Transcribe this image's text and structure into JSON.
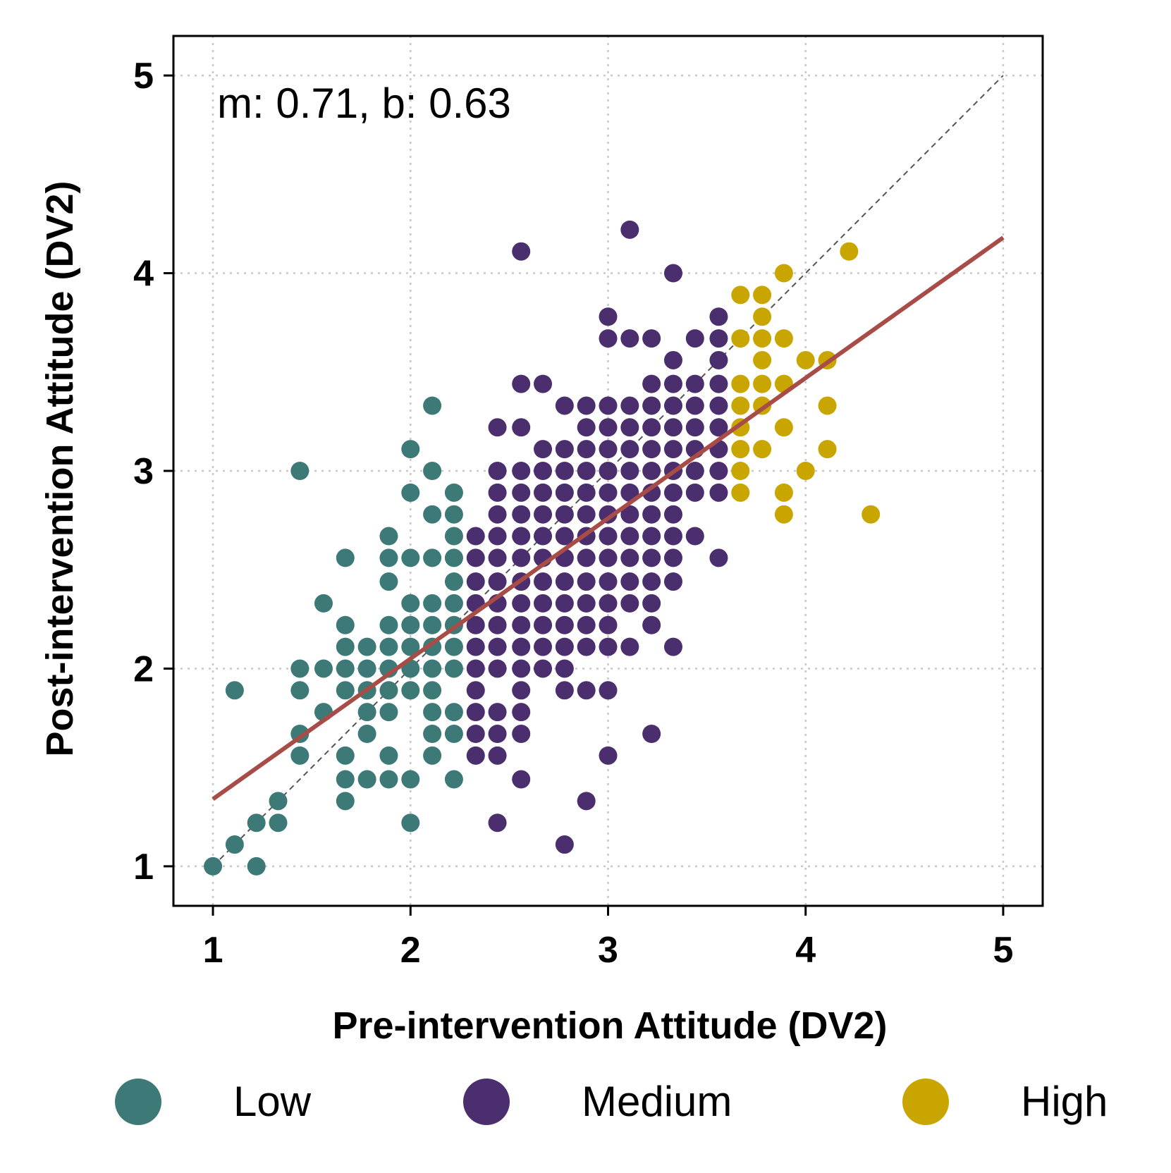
{
  "chart_data": {
    "type": "scatter",
    "xlabel": "Pre-intervention Attitude (DV2)",
    "ylabel": "Post-intervention Attitude (DV2)",
    "xlim": [
      0.8,
      5.2
    ],
    "ylim": [
      0.8,
      5.2
    ],
    "xticks": [
      1,
      2,
      3,
      4,
      5
    ],
    "yticks": [
      1,
      2,
      3,
      4,
      5
    ],
    "grid": true,
    "annotation": "m: 0.71, b: 0.63",
    "identity_line": true,
    "fit_line": {
      "slope": 0.71,
      "intercept": 0.63,
      "x_range": [
        1,
        5
      ],
      "color": "#a84c48"
    },
    "legend_position": "bottom",
    "series": [
      {
        "name": "Low",
        "color": "#3d7a77",
        "points": [
          [
            1.0,
            1.0
          ],
          [
            1.11,
            1.11
          ],
          [
            1.22,
            1.0
          ],
          [
            1.22,
            1.22
          ],
          [
            1.33,
            1.22
          ],
          [
            1.33,
            1.33
          ],
          [
            1.11,
            1.89
          ],
          [
            1.44,
            1.56
          ],
          [
            1.44,
            1.67
          ],
          [
            1.44,
            1.89
          ],
          [
            1.44,
            2.0
          ],
          [
            1.44,
            3.0
          ],
          [
            1.56,
            1.78
          ],
          [
            1.56,
            2.0
          ],
          [
            1.56,
            2.33
          ],
          [
            1.67,
            1.33
          ],
          [
            1.67,
            1.44
          ],
          [
            1.67,
            1.56
          ],
          [
            1.67,
            1.89
          ],
          [
            1.67,
            2.0
          ],
          [
            1.67,
            2.11
          ],
          [
            1.67,
            2.22
          ],
          [
            1.67,
            2.56
          ],
          [
            1.78,
            1.44
          ],
          [
            1.78,
            1.67
          ],
          [
            1.78,
            1.78
          ],
          [
            1.78,
            1.89
          ],
          [
            1.78,
            2.0
          ],
          [
            1.78,
            2.11
          ],
          [
            1.89,
            1.44
          ],
          [
            1.89,
            1.56
          ],
          [
            1.89,
            1.78
          ],
          [
            1.89,
            1.89
          ],
          [
            1.89,
            2.0
          ],
          [
            1.89,
            2.11
          ],
          [
            1.89,
            2.22
          ],
          [
            1.89,
            2.44
          ],
          [
            1.89,
            2.56
          ],
          [
            1.89,
            2.67
          ],
          [
            2.0,
            1.22
          ],
          [
            2.0,
            1.44
          ],
          [
            2.0,
            1.89
          ],
          [
            2.0,
            2.0
          ],
          [
            2.0,
            2.11
          ],
          [
            2.0,
            2.22
          ],
          [
            2.0,
            2.33
          ],
          [
            2.0,
            2.56
          ],
          [
            2.0,
            2.89
          ],
          [
            2.0,
            3.11
          ],
          [
            2.11,
            1.56
          ],
          [
            2.11,
            1.67
          ],
          [
            2.11,
            1.78
          ],
          [
            2.11,
            1.89
          ],
          [
            2.11,
            2.0
          ],
          [
            2.11,
            2.11
          ],
          [
            2.11,
            2.22
          ],
          [
            2.11,
            2.33
          ],
          [
            2.11,
            2.56
          ],
          [
            2.11,
            2.78
          ],
          [
            2.11,
            3.0
          ],
          [
            2.11,
            3.33
          ],
          [
            2.22,
            1.44
          ],
          [
            2.22,
            1.67
          ],
          [
            2.22,
            1.78
          ],
          [
            2.22,
            2.0
          ],
          [
            2.22,
            2.11
          ],
          [
            2.22,
            2.22
          ],
          [
            2.22,
            2.33
          ],
          [
            2.22,
            2.44
          ],
          [
            2.22,
            2.56
          ],
          [
            2.22,
            2.67
          ],
          [
            2.22,
            2.78
          ],
          [
            2.22,
            2.89
          ]
        ]
      },
      {
        "name": "Medium",
        "color": "#4b2e6e",
        "points": [
          [
            2.33,
            1.56
          ],
          [
            2.33,
            1.67
          ],
          [
            2.33,
            1.78
          ],
          [
            2.33,
            1.89
          ],
          [
            2.33,
            2.0
          ],
          [
            2.33,
            2.11
          ],
          [
            2.33,
            2.22
          ],
          [
            2.33,
            2.33
          ],
          [
            2.33,
            2.44
          ],
          [
            2.33,
            2.56
          ],
          [
            2.33,
            2.67
          ],
          [
            2.44,
            1.22
          ],
          [
            2.44,
            1.56
          ],
          [
            2.44,
            1.67
          ],
          [
            2.44,
            1.78
          ],
          [
            2.44,
            2.0
          ],
          [
            2.44,
            2.11
          ],
          [
            2.44,
            2.22
          ],
          [
            2.44,
            2.33
          ],
          [
            2.44,
            2.44
          ],
          [
            2.44,
            2.56
          ],
          [
            2.44,
            2.67
          ],
          [
            2.44,
            2.78
          ],
          [
            2.44,
            2.89
          ],
          [
            2.44,
            3.0
          ],
          [
            2.44,
            3.22
          ],
          [
            2.56,
            1.44
          ],
          [
            2.56,
            1.67
          ],
          [
            2.56,
            1.78
          ],
          [
            2.56,
            1.89
          ],
          [
            2.56,
            2.0
          ],
          [
            2.56,
            2.11
          ],
          [
            2.56,
            2.22
          ],
          [
            2.56,
            2.33
          ],
          [
            2.56,
            2.44
          ],
          [
            2.56,
            2.56
          ],
          [
            2.56,
            2.67
          ],
          [
            2.56,
            2.78
          ],
          [
            2.56,
            2.89
          ],
          [
            2.56,
            3.0
          ],
          [
            2.56,
            3.22
          ],
          [
            2.56,
            3.44
          ],
          [
            2.56,
            4.11
          ],
          [
            2.67,
            2.0
          ],
          [
            2.67,
            2.11
          ],
          [
            2.67,
            2.22
          ],
          [
            2.67,
            2.33
          ],
          [
            2.67,
            2.44
          ],
          [
            2.67,
            2.56
          ],
          [
            2.67,
            2.67
          ],
          [
            2.67,
            2.78
          ],
          [
            2.67,
            2.89
          ],
          [
            2.67,
            3.0
          ],
          [
            2.67,
            3.11
          ],
          [
            2.67,
            3.44
          ],
          [
            2.78,
            1.11
          ],
          [
            2.78,
            1.89
          ],
          [
            2.78,
            2.0
          ],
          [
            2.78,
            2.11
          ],
          [
            2.78,
            2.22
          ],
          [
            2.78,
            2.33
          ],
          [
            2.78,
            2.44
          ],
          [
            2.78,
            2.56
          ],
          [
            2.78,
            2.67
          ],
          [
            2.78,
            2.78
          ],
          [
            2.78,
            2.89
          ],
          [
            2.78,
            3.0
          ],
          [
            2.78,
            3.11
          ],
          [
            2.78,
            3.33
          ],
          [
            2.89,
            1.33
          ],
          [
            2.89,
            1.89
          ],
          [
            2.89,
            2.11
          ],
          [
            2.89,
            2.22
          ],
          [
            2.89,
            2.33
          ],
          [
            2.89,
            2.44
          ],
          [
            2.89,
            2.56
          ],
          [
            2.89,
            2.67
          ],
          [
            2.89,
            2.78
          ],
          [
            2.89,
            2.89
          ],
          [
            2.89,
            3.0
          ],
          [
            2.89,
            3.11
          ],
          [
            2.89,
            3.22
          ],
          [
            2.89,
            3.33
          ],
          [
            3.0,
            1.56
          ],
          [
            3.0,
            1.89
          ],
          [
            3.0,
            2.11
          ],
          [
            3.0,
            2.22
          ],
          [
            3.0,
            2.33
          ],
          [
            3.0,
            2.44
          ],
          [
            3.0,
            2.56
          ],
          [
            3.0,
            2.67
          ],
          [
            3.0,
            2.78
          ],
          [
            3.0,
            2.89
          ],
          [
            3.0,
            3.0
          ],
          [
            3.0,
            3.11
          ],
          [
            3.0,
            3.22
          ],
          [
            3.0,
            3.33
          ],
          [
            3.0,
            3.67
          ],
          [
            3.0,
            3.78
          ],
          [
            3.11,
            2.11
          ],
          [
            3.11,
            2.33
          ],
          [
            3.11,
            2.44
          ],
          [
            3.11,
            2.56
          ],
          [
            3.11,
            2.67
          ],
          [
            3.11,
            2.78
          ],
          [
            3.11,
            2.89
          ],
          [
            3.11,
            3.0
          ],
          [
            3.11,
            3.11
          ],
          [
            3.11,
            3.22
          ],
          [
            3.11,
            3.33
          ],
          [
            3.11,
            3.67
          ],
          [
            3.11,
            4.22
          ],
          [
            3.22,
            1.67
          ],
          [
            3.22,
            2.22
          ],
          [
            3.22,
            2.33
          ],
          [
            3.22,
            2.44
          ],
          [
            3.22,
            2.56
          ],
          [
            3.22,
            2.67
          ],
          [
            3.22,
            2.78
          ],
          [
            3.22,
            2.89
          ],
          [
            3.22,
            3.0
          ],
          [
            3.22,
            3.11
          ],
          [
            3.22,
            3.22
          ],
          [
            3.22,
            3.33
          ],
          [
            3.22,
            3.44
          ],
          [
            3.22,
            3.67
          ],
          [
            3.33,
            2.11
          ],
          [
            3.33,
            2.44
          ],
          [
            3.33,
            2.56
          ],
          [
            3.33,
            2.67
          ],
          [
            3.33,
            2.78
          ],
          [
            3.33,
            2.89
          ],
          [
            3.33,
            3.0
          ],
          [
            3.33,
            3.11
          ],
          [
            3.33,
            3.22
          ],
          [
            3.33,
            3.33
          ],
          [
            3.33,
            3.44
          ],
          [
            3.33,
            3.56
          ],
          [
            3.33,
            4.0
          ],
          [
            3.44,
            2.67
          ],
          [
            3.44,
            2.89
          ],
          [
            3.44,
            3.0
          ],
          [
            3.44,
            3.11
          ],
          [
            3.44,
            3.22
          ],
          [
            3.44,
            3.33
          ],
          [
            3.44,
            3.44
          ],
          [
            3.44,
            3.67
          ],
          [
            3.56,
            2.56
          ],
          [
            3.56,
            2.89
          ],
          [
            3.56,
            3.0
          ],
          [
            3.56,
            3.11
          ],
          [
            3.56,
            3.22
          ],
          [
            3.56,
            3.33
          ],
          [
            3.56,
            3.44
          ],
          [
            3.56,
            3.56
          ],
          [
            3.56,
            3.67
          ],
          [
            3.56,
            3.78
          ]
        ]
      },
      {
        "name": "High",
        "color": "#c9a500",
        "points": [
          [
            3.67,
            2.89
          ],
          [
            3.67,
            3.0
          ],
          [
            3.67,
            3.11
          ],
          [
            3.67,
            3.22
          ],
          [
            3.67,
            3.33
          ],
          [
            3.67,
            3.44
          ],
          [
            3.67,
            3.67
          ],
          [
            3.67,
            3.89
          ],
          [
            3.78,
            3.11
          ],
          [
            3.78,
            3.33
          ],
          [
            3.78,
            3.44
          ],
          [
            3.78,
            3.56
          ],
          [
            3.78,
            3.67
          ],
          [
            3.78,
            3.78
          ],
          [
            3.78,
            3.89
          ],
          [
            3.89,
            2.78
          ],
          [
            3.89,
            2.89
          ],
          [
            3.89,
            3.22
          ],
          [
            3.89,
            3.44
          ],
          [
            3.89,
            3.67
          ],
          [
            3.89,
            4.0
          ],
          [
            4.0,
            3.0
          ],
          [
            4.0,
            3.56
          ],
          [
            4.11,
            3.11
          ],
          [
            4.11,
            3.33
          ],
          [
            4.11,
            3.56
          ],
          [
            4.22,
            4.11
          ],
          [
            4.33,
            2.78
          ]
        ]
      }
    ]
  }
}
